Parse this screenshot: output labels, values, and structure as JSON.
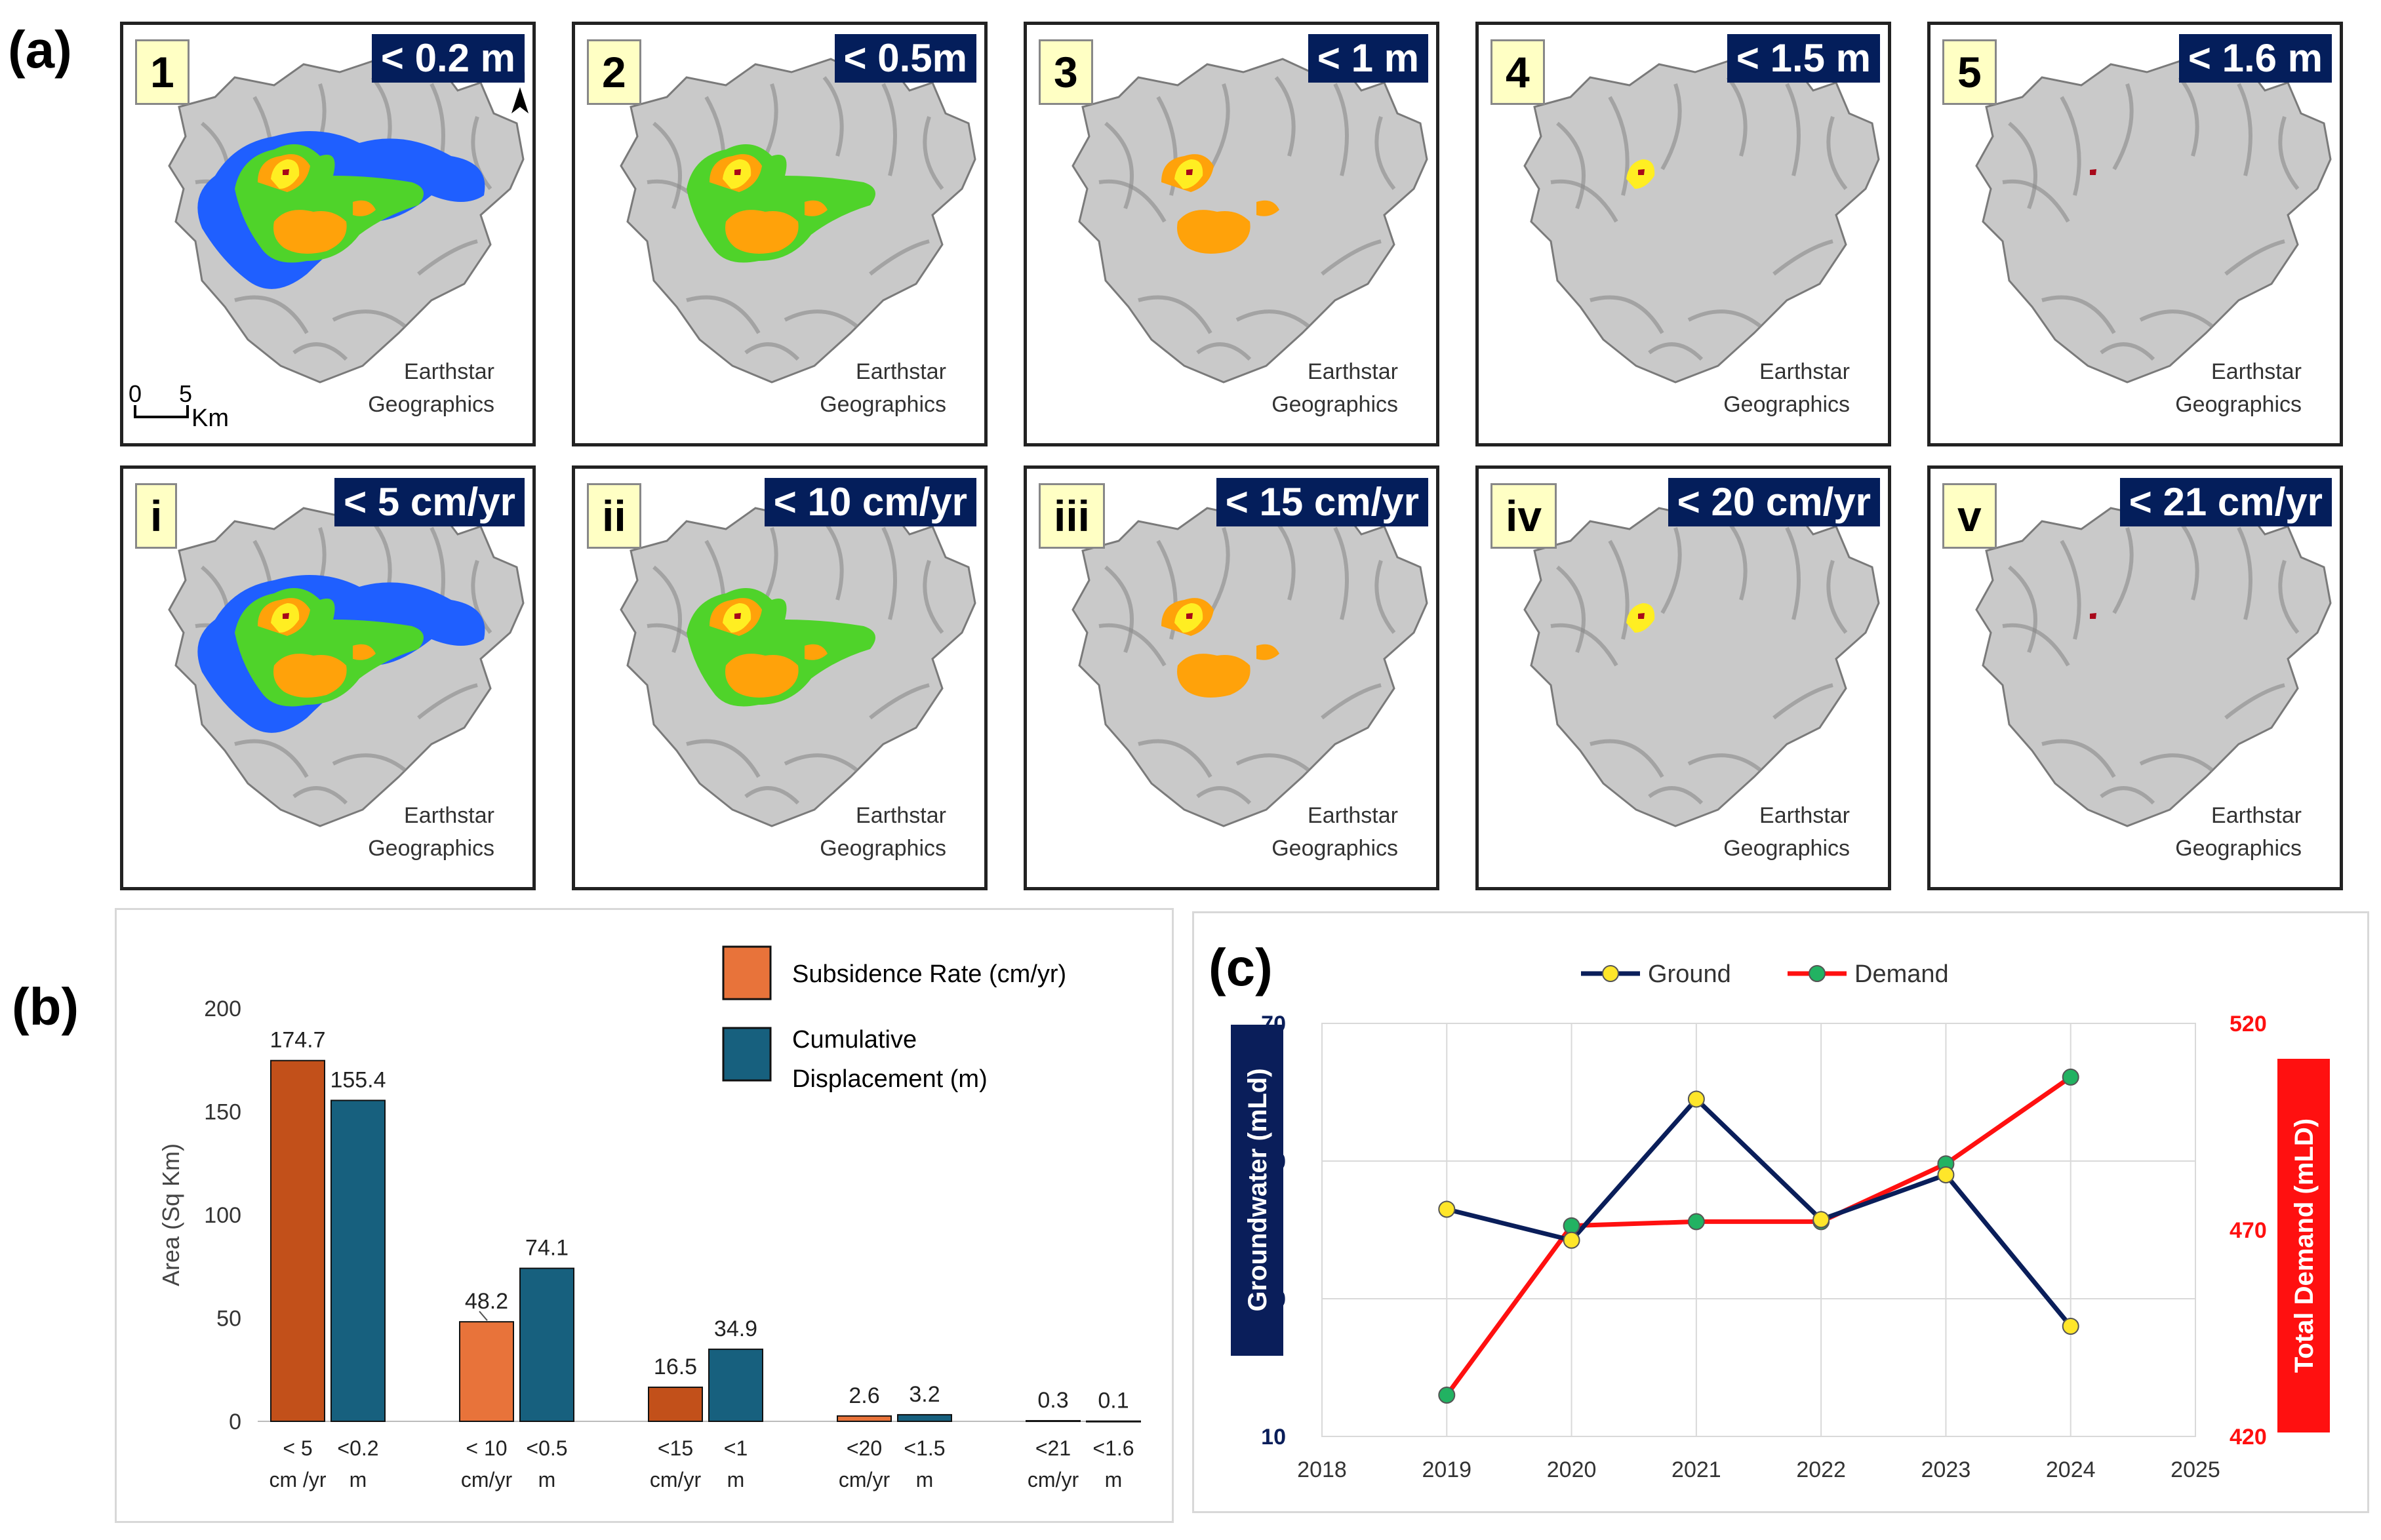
{
  "figure": {
    "label_a": "(a)",
    "label_b": "(b)",
    "label_c": "(c)"
  },
  "colors": {
    "class1": "#1f5fff",
    "class2": "#4fd32a",
    "class3": "#ffa20a",
    "class4": "#ffee22",
    "class5": "#a8081a",
    "rate_bar": "#c2501a",
    "rate_bar_light": "#e8733a",
    "cum_bar": "#17607e",
    "ground": "#0a1e5a",
    "demand": "#ff1010",
    "ground_marker": "#ffe62a",
    "demand_marker": "#22b262"
  },
  "maps": {
    "credit_line1": "Earthstar",
    "credit_line2": "Geographics",
    "north": "N",
    "scale": {
      "zero": "0",
      "five": "5",
      "unit": "Km"
    },
    "top_row": [
      {
        "id": "1",
        "threshold": "< 0.2 m",
        "max_class": 5
      },
      {
        "id": "2",
        "threshold": "< 0.5m",
        "max_class": 4
      },
      {
        "id": "3",
        "threshold": "< 1 m",
        "max_class": 3
      },
      {
        "id": "4",
        "threshold": "< 1.5 m",
        "max_class": 2
      },
      {
        "id": "5",
        "threshold": "< 1.6 m",
        "max_class": 1
      }
    ],
    "bottom_row": [
      {
        "id": "i",
        "threshold": "< 5 cm/yr",
        "max_class": 5
      },
      {
        "id": "ii",
        "threshold": "< 10 cm/yr",
        "max_class": 4
      },
      {
        "id": "iii",
        "threshold": "< 15 cm/yr",
        "max_class": 3
      },
      {
        "id": "iv",
        "threshold": "< 20 cm/yr",
        "max_class": 2
      },
      {
        "id": "v",
        "threshold": "< 21 cm/yr",
        "max_class": 1
      }
    ]
  },
  "chart_data": [
    {
      "type": "bar",
      "ylabel": "Area (Sq Km)",
      "ylim": [
        0,
        200
      ],
      "yticks": [
        0,
        50,
        100,
        150,
        200
      ],
      "legend": [
        "Subsidence Rate (cm/yr)",
        "Cumulative",
        "Displacement (m)"
      ],
      "legend_position": "top-right",
      "categories": [
        {
          "rate_label": [
            "< 5",
            "cm /yr"
          ],
          "cum_label": [
            "<0.2",
            "m"
          ]
        },
        {
          "rate_label": [
            "< 10",
            "cm/yr"
          ],
          "cum_label": [
            "<0.5",
            "m"
          ]
        },
        {
          "rate_label": [
            "<15",
            "cm/yr"
          ],
          "cum_label": [
            "<1",
            "m"
          ]
        },
        {
          "rate_label": [
            "<20",
            "cm/yr"
          ],
          "cum_label": [
            "<1.5",
            "m"
          ]
        },
        {
          "rate_label": [
            "<21",
            "cm/yr"
          ],
          "cum_label": [
            "<1.6",
            "m"
          ]
        }
      ],
      "series": [
        {
          "name": "Subsidence Rate (cm/yr)",
          "values": [
            174.7,
            48.2,
            16.5,
            2.6,
            0.3
          ],
          "labels": [
            "174.7",
            "48.2",
            "16.5",
            "2.6",
            "0.3"
          ]
        },
        {
          "name": "Cumulative Displacement (m)",
          "values": [
            155.4,
            74.1,
            34.9,
            3.2,
            0.1
          ],
          "labels": [
            "155.4",
            "74.1",
            "34.9",
            "3.2",
            "0.1"
          ]
        }
      ],
      "grid": false
    },
    {
      "type": "line",
      "x": [
        2019,
        2020,
        2021,
        2022,
        2023,
        2024
      ],
      "xticks": [
        "2018",
        "2019",
        "2020",
        "2021",
        "2022",
        "2023",
        "2024",
        "2025"
      ],
      "xlim": [
        2018,
        2025
      ],
      "ylabel_left": "Groundwater (mLd)",
      "ylabel_right": "Total Demand (mLD)",
      "ylim_left": [
        10,
        70
      ],
      "yticks_left": [
        "10",
        "30",
        "50",
        "70"
      ],
      "ylim_right": [
        420,
        520
      ],
      "yticks_right": [
        "420",
        "470",
        "520"
      ],
      "legend": [
        "Ground",
        "Demand"
      ],
      "legend_position": "top",
      "grid": true,
      "series": [
        {
          "name": "Ground",
          "axis": "left",
          "values": [
            43,
            38.5,
            59,
            41.5,
            48,
            26
          ]
        },
        {
          "name": "Demand",
          "axis": "right",
          "values": [
            430,
            471,
            472,
            472,
            486,
            507
          ]
        }
      ]
    }
  ]
}
